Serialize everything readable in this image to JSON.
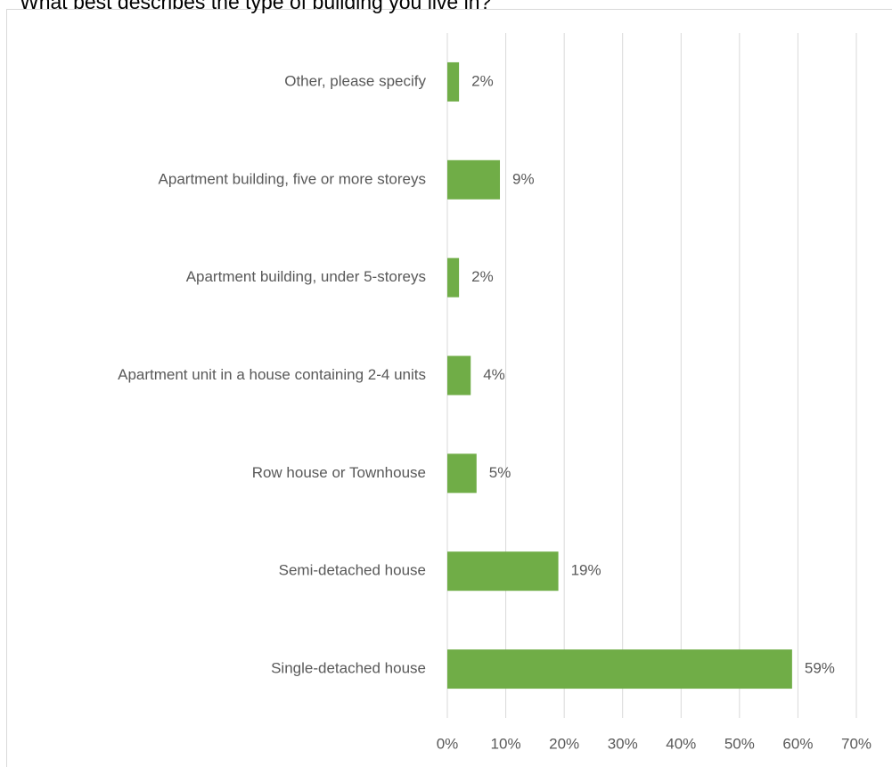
{
  "chart_data": {
    "type": "bar",
    "orientation": "horizontal",
    "title": "What best describes the type of building you live in?",
    "categories": [
      "Other, please specify",
      "Apartment building, five or more storeys",
      "Apartment building, under 5-storeys",
      "Apartment unit in a house containing 2-4 units",
      "Row house or Townhouse",
      "Semi-detached house",
      "Single-detached house"
    ],
    "values": [
      2,
      9,
      2,
      4,
      5,
      19,
      59
    ],
    "value_labels": [
      "2%",
      "9%",
      "2%",
      "4%",
      "5%",
      "19%",
      "59%"
    ],
    "color": "#70ad47",
    "xlim": [
      0,
      70
    ],
    "xticks": [
      {
        "value": 0,
        "label": "0%"
      },
      {
        "value": 10,
        "label": "10%"
      },
      {
        "value": 20,
        "label": "20%"
      },
      {
        "value": 30,
        "label": "30%"
      },
      {
        "value": 40,
        "label": "40%"
      },
      {
        "value": 50,
        "label": "50%"
      },
      {
        "value": 60,
        "label": "60%"
      },
      {
        "value": 70,
        "label": "70%"
      }
    ],
    "grid": true
  }
}
